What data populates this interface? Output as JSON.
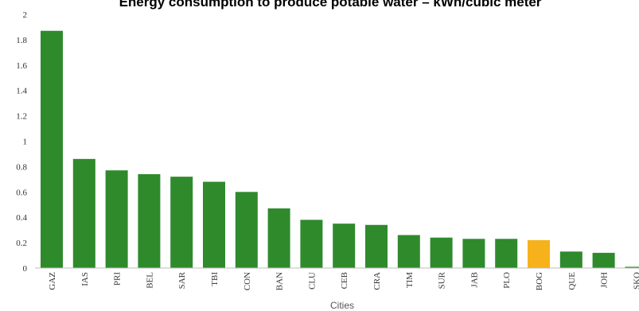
{
  "chart_data": {
    "type": "bar",
    "title": "Energy consumption to produce potable water – kWh/cubic meter",
    "xlabel": "Cities",
    "ylabel": "",
    "ylim": [
      0,
      2
    ],
    "yticks": [
      "0",
      "0.2",
      "0.4",
      "0.6",
      "0.8",
      "1",
      "1.2",
      "1.4",
      "1.6",
      "1.8",
      "2"
    ],
    "categories": [
      "GAZ",
      "IAS",
      "PRI",
      "BEL",
      "SAR",
      "TBI",
      "CON",
      "BAN",
      "CLU",
      "CEB",
      "CRA",
      "TIM",
      "SUR",
      "JAB",
      "PLO",
      "BOG",
      "QUE",
      "JOH",
      "SKO"
    ],
    "values": [
      1.87,
      0.86,
      0.77,
      0.74,
      0.72,
      0.68,
      0.6,
      0.47,
      0.38,
      0.35,
      0.34,
      0.26,
      0.24,
      0.23,
      0.23,
      0.22,
      0.13,
      0.12,
      0.01
    ],
    "highlight_category": "BOG",
    "colors": {
      "bar": "#2f8a2c",
      "highlight": "#f6b21b",
      "axis": "#bdbdbd"
    },
    "grid": false,
    "legend": "none"
  }
}
